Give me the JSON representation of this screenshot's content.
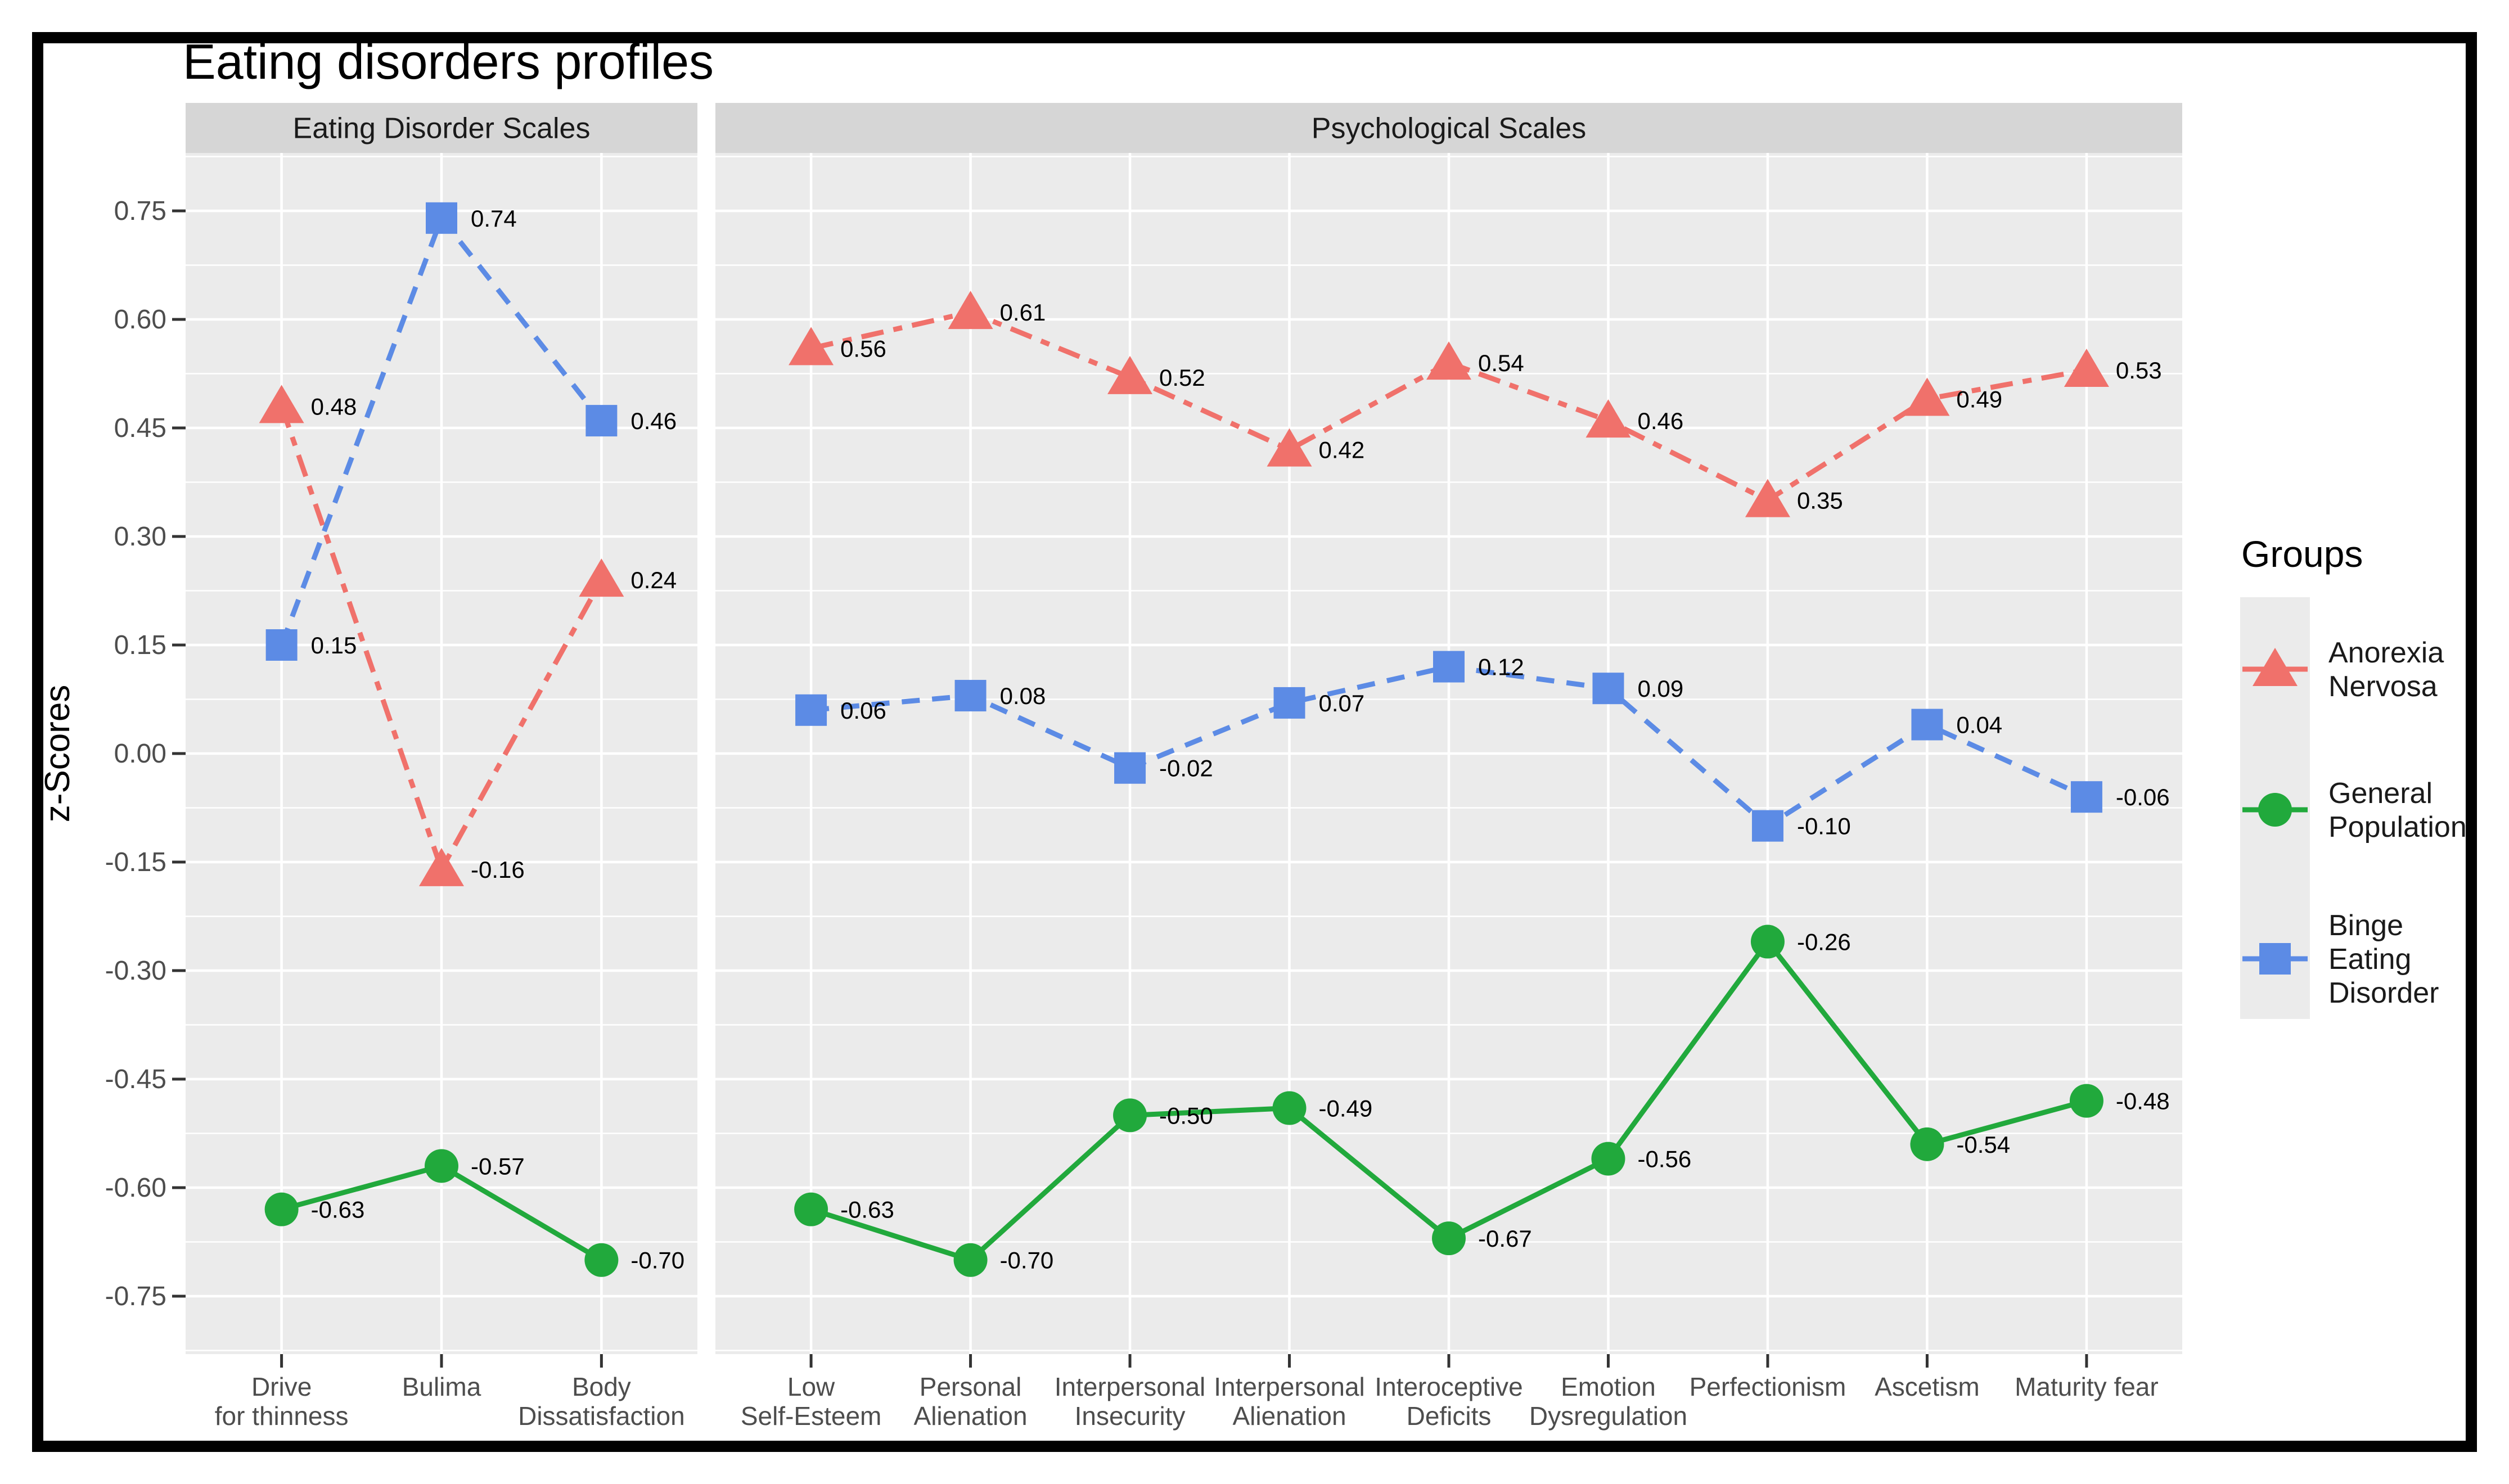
{
  "title": "Eating disorders profiles",
  "y_axis": {
    "label": "z-Scores",
    "ticks": [
      0.75,
      0.6,
      0.45,
      0.3,
      0.15,
      0.0,
      -0.15,
      -0.3,
      -0.45,
      -0.6,
      -0.75
    ],
    "ylim": [
      -0.83,
      0.83
    ]
  },
  "legend": {
    "title": "Groups",
    "items": [
      {
        "series": "Anorexia Nervosa",
        "label_lines": [
          "Anorexia",
          "Nervosa"
        ]
      },
      {
        "series": "General Population",
        "label_lines": [
          "General",
          "Population"
        ]
      },
      {
        "series": "Binge Eating Disorder",
        "label_lines": [
          "Binge",
          "Eating",
          "Disorder"
        ]
      }
    ]
  },
  "chart_data": {
    "type": "line",
    "title": "Eating disorders profiles",
    "ylabel": "z-Scores",
    "ylim": [
      -0.83,
      0.83
    ],
    "grid": true,
    "legend_position": "right",
    "series_styles": [
      {
        "name": "Anorexia Nervosa",
        "color": "#F0716B",
        "marker": "triangle",
        "linestyle": "dashdot"
      },
      {
        "name": "General Population",
        "color": "#21A93C",
        "marker": "circle",
        "linestyle": "solid"
      },
      {
        "name": "Binge Eating Disorder",
        "color": "#5C8BE5",
        "marker": "square",
        "linestyle": "dashed"
      }
    ],
    "facets": [
      {
        "label": "Eating Disorder Scales",
        "categories": [
          [
            "Drive",
            "for thinness"
          ],
          [
            "Bulima"
          ],
          [
            "Body",
            "Dissatisfaction"
          ]
        ],
        "series": [
          {
            "name": "Anorexia Nervosa",
            "values": [
              0.48,
              -0.16,
              0.24
            ]
          },
          {
            "name": "General Population",
            "values": [
              -0.63,
              -0.57,
              -0.7
            ]
          },
          {
            "name": "Binge Eating Disorder",
            "values": [
              0.15,
              0.74,
              0.46
            ]
          }
        ]
      },
      {
        "label": "Psychological Scales",
        "categories": [
          [
            "Low",
            "Self-Esteem"
          ],
          [
            "Personal",
            "Alienation"
          ],
          [
            "Interpersonal",
            "Insecurity"
          ],
          [
            "Interpersonal",
            "Alienation"
          ],
          [
            "Interoceptive",
            "Deficits"
          ],
          [
            "Emotion",
            "Dysregulation"
          ],
          [
            "Perfectionism"
          ],
          [
            "Ascetism"
          ],
          [
            "Maturity fear"
          ]
        ],
        "series": [
          {
            "name": "Anorexia Nervosa",
            "values": [
              0.56,
              0.61,
              0.52,
              0.42,
              0.54,
              0.46,
              0.35,
              0.49,
              0.53
            ]
          },
          {
            "name": "General Population",
            "values": [
              -0.63,
              -0.7,
              -0.5,
              -0.49,
              -0.67,
              -0.56,
              -0.26,
              -0.54,
              -0.48
            ]
          },
          {
            "name": "Binge Eating Disorder",
            "values": [
              0.06,
              0.08,
              -0.02,
              0.07,
              0.12,
              0.09,
              -0.1,
              0.04,
              -0.06
            ]
          }
        ]
      }
    ]
  },
  "colors": {
    "panel_bg": "#EBEBEB",
    "strip_bg": "#D6D6D6",
    "gridline": "#FFFFFF",
    "tick_label": "#4D4D4D",
    "tick_mark": "#333333",
    "text": "#000000",
    "legend_key_bg": "#EBEBEB",
    "border": "#000000"
  }
}
